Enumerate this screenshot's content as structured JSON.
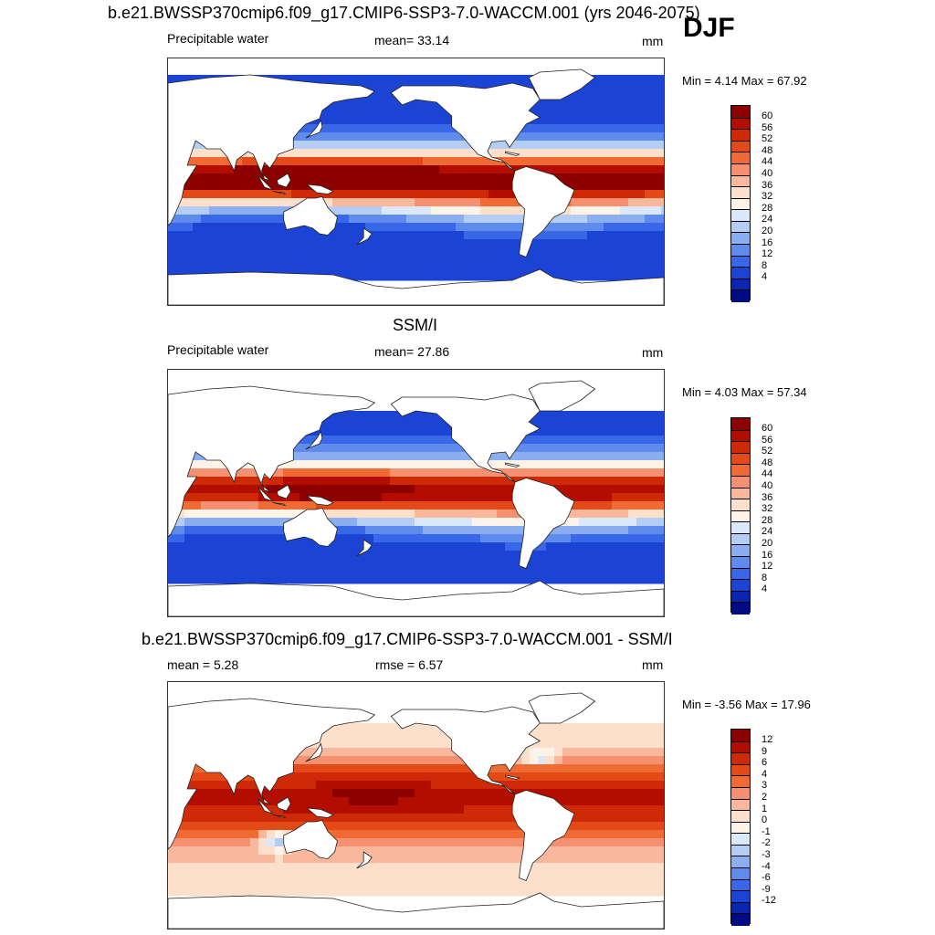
{
  "season": "DJF",
  "panels": [
    {
      "title": "b.e21.BWSSP370cmip6.f09_g17.CMIP6-SSP3-7.0-WACCM.001 (yrs 2046-2075)",
      "left_label": "Precipitable water",
      "center_label": "mean=  33.14",
      "right_label": "mm",
      "minmax": "Min =   4.14 Max =  67.92",
      "colorbar_labels": [
        "60",
        "56",
        "52",
        "48",
        "44",
        "40",
        "36",
        "32",
        "28",
        "24",
        "20",
        "16",
        "12",
        "8",
        "4"
      ],
      "colors": [
        "#8c0000",
        "#b30d00",
        "#cf2a07",
        "#e34a18",
        "#f06a33",
        "#f59070",
        "#f9b89b",
        "#fde0cc",
        "#fdf3e8",
        "#dbe8fa",
        "#b4cdf4",
        "#8aaef0",
        "#5f8cec",
        "#3867e8",
        "#1c44d4",
        "#0a26b0",
        "#000a82"
      ]
    },
    {
      "title": "SSM/I",
      "left_label": "Precipitable water",
      "center_label": "mean=  27.86",
      "right_label": "mm",
      "minmax": "Min =   4.03 Max =  57.34",
      "colorbar_labels": [
        "60",
        "56",
        "52",
        "48",
        "44",
        "40",
        "36",
        "32",
        "28",
        "24",
        "20",
        "16",
        "12",
        "8",
        "4"
      ],
      "colors": [
        "#8c0000",
        "#b30d00",
        "#cf2a07",
        "#e34a18",
        "#f06a33",
        "#f59070",
        "#f9b89b",
        "#fde0cc",
        "#fdf3e8",
        "#dbe8fa",
        "#b4cdf4",
        "#8aaef0",
        "#5f8cec",
        "#3867e8",
        "#1c44d4",
        "#0a26b0",
        "#000a82"
      ]
    },
    {
      "title": "b.e21.BWSSP370cmip6.f09_g17.CMIP6-SSP3-7.0-WACCM.001 - SSM/I",
      "left_label": "mean =   5.28",
      "center_label": "rmse =   6.57",
      "right_label": "mm",
      "minmax": "Min =  -3.56 Max =  17.96",
      "colorbar_labels": [
        "12",
        "9",
        "6",
        "4",
        "3",
        "2",
        "1",
        "0",
        "-1",
        "-2",
        "-3",
        "-4",
        "-6",
        "-9",
        "-12"
      ],
      "colors": [
        "#8c0000",
        "#b30d00",
        "#cf2a07",
        "#e34a18",
        "#f06a33",
        "#f59070",
        "#f9b89b",
        "#fde0cc",
        "#fdf3e8",
        "#dbe8fa",
        "#b4cdf4",
        "#8aaef0",
        "#5f8cec",
        "#3867e8",
        "#1c44d4",
        "#0a26b0",
        "#000a82"
      ]
    }
  ]
}
